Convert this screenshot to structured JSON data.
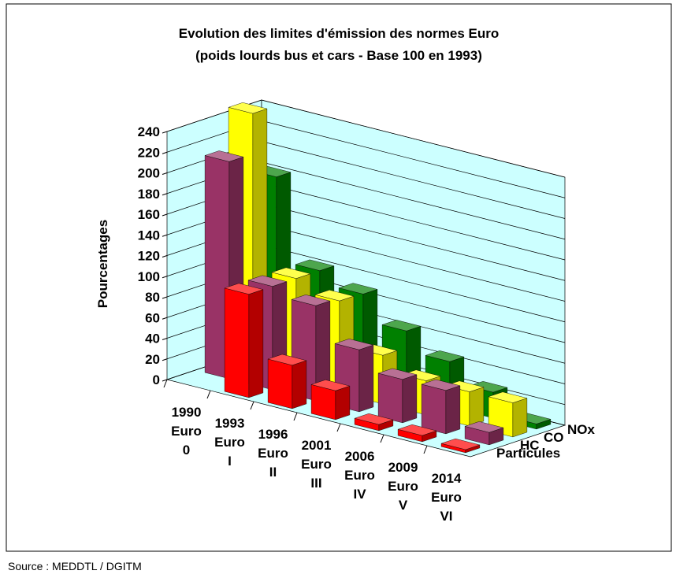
{
  "chart_data": {
    "type": "bar3d",
    "title": "Evolution des limites d'émission des normes Euro",
    "subtitle": "(poids lourds bus et cars - Base 100 en 1993)",
    "ylabel": "Pourcentages",
    "source": "Source : MEDDTL / DGITM",
    "categories": [
      [
        "1990",
        "Euro",
        "0"
      ],
      [
        "1993",
        "Euro",
        "I"
      ],
      [
        "1996",
        "Euro",
        "II"
      ],
      [
        "2001",
        "Euro",
        "III"
      ],
      [
        "2006",
        "Euro",
        "IV"
      ],
      [
        "2009",
        "Euro",
        "V"
      ],
      [
        "2014",
        "Euro",
        "VI"
      ]
    ],
    "series": [
      {
        "name": "Particules",
        "color": "#ff0000",
        "values": [
          null,
          100,
          42,
          28,
          6,
          6,
          3
        ]
      },
      {
        "name": "HC",
        "color": "#993366",
        "values": [
          210,
          100,
          92,
          60,
          42,
          42,
          12
        ]
      },
      {
        "name": "CO",
        "color": "#ffff00",
        "values": [
          249,
          100,
          89,
          47,
          33,
          33,
          33
        ]
      },
      {
        "name": "NOx",
        "color": "#008000",
        "values": [
          180,
          100,
          88,
          63,
          44,
          25,
          5
        ]
      }
    ],
    "ylim": [
      0,
      240
    ],
    "yticks": [
      0,
      20,
      40,
      60,
      80,
      100,
      120,
      140,
      160,
      180,
      200,
      220,
      240
    ],
    "grid": true
  }
}
